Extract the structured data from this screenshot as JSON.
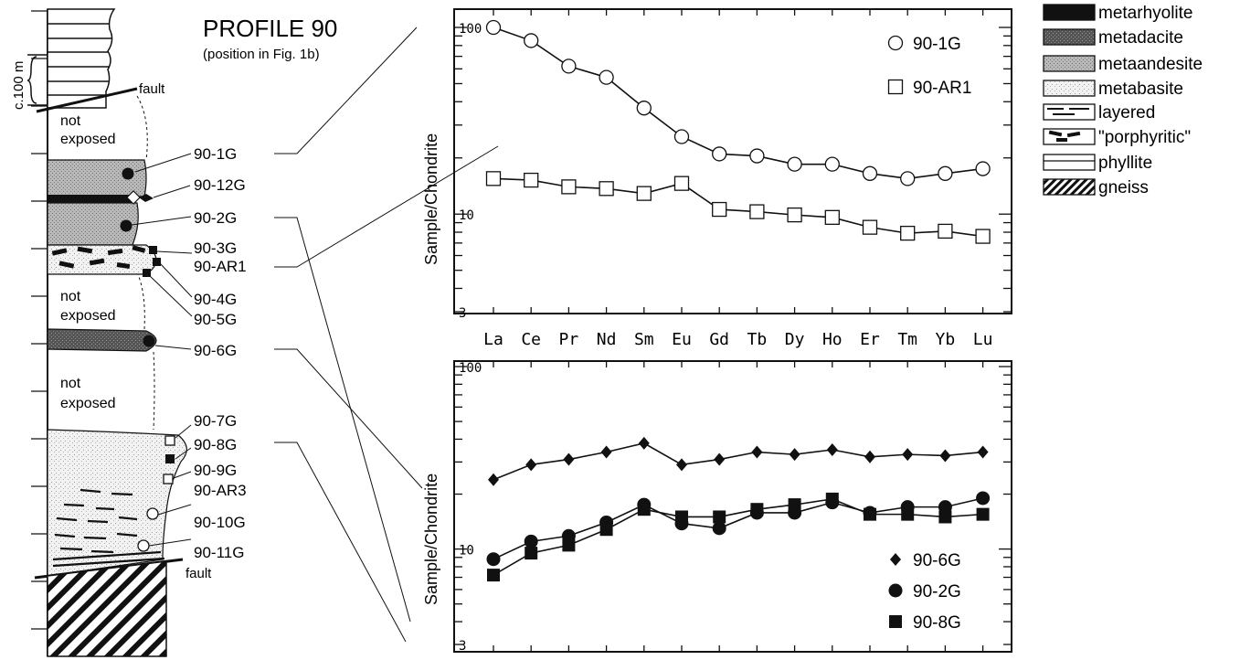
{
  "title": "PROFILE 90",
  "subtitle": "(position in Fig. 1b)",
  "scale_label": "c.100 m",
  "column_labels": {
    "fault_top": "fault",
    "fault_bottom": "fault",
    "not_exposed_1": [
      "not",
      "exposed"
    ],
    "not_exposed_2": [
      "not",
      "exposed"
    ],
    "not_exposed_3": [
      "not",
      "exposed"
    ]
  },
  "samples": [
    "90-1G",
    "90-12G",
    "90-2G",
    "90-3G",
    "90-AR1",
    "90-4G",
    "90-5G",
    "90-6G",
    "90-7G",
    "90-8G",
    "90-9G",
    "90-AR3",
    "90-10G",
    "90-11G"
  ],
  "legend": [
    {
      "label": "metarhyolite",
      "pattern": "solid-black"
    },
    {
      "label": "metadacite",
      "pattern": "dark-stipple"
    },
    {
      "label": "metaandesite",
      "pattern": "medium-stipple"
    },
    {
      "label": "metabasite",
      "pattern": "light-stipple"
    },
    {
      "label": "layered",
      "pattern": "dashes"
    },
    {
      "label": "\"porphyritic\"",
      "pattern": "thick-dashes"
    },
    {
      "label": "phyllite",
      "pattern": "horizontal-lines"
    },
    {
      "label": "gneiss",
      "pattern": "diagonal-hatch"
    }
  ],
  "colors": {
    "ink": "#111111",
    "stipple_dark": "#5a5a5a",
    "stipple_medium": "#b4b4b4",
    "stipple_light": "#ececec"
  },
  "chart_data": [
    {
      "type": "line",
      "ylabel": "Sample/Chondrite",
      "yscale": "log",
      "ylim": [
        3,
        100
      ],
      "yticks": [
        3,
        10,
        100
      ],
      "categories": [
        "La",
        "Ce",
        "Pr",
        "Nd",
        "Sm",
        "Eu",
        "Gd",
        "Tb",
        "Dy",
        "Ho",
        "Er",
        "Tm",
        "Yb",
        "Lu"
      ],
      "series": [
        {
          "name": "90-1G",
          "marker": "open-circle",
          "values": [
            100,
            85,
            62,
            54,
            37,
            26,
            21,
            20.5,
            18.5,
            18.5,
            16.5,
            15.5,
            16.5,
            17.5
          ]
        },
        {
          "name": "90-AR1",
          "marker": "open-square",
          "values": [
            15.5,
            15.2,
            14,
            13.7,
            12.9,
            14.6,
            10.6,
            10.3,
            9.9,
            9.6,
            8.5,
            7.9,
            8.1,
            7.6
          ]
        }
      ]
    },
    {
      "type": "line",
      "ylabel": "Sample/Chondrite",
      "yscale": "log",
      "ylim": [
        3,
        100
      ],
      "yticks": [
        3,
        10,
        100
      ],
      "categories": [
        "La",
        "Ce",
        "Pr",
        "Nd",
        "Sm",
        "Eu",
        "Gd",
        "Tb",
        "Dy",
        "Ho",
        "Er",
        "Tm",
        "Yb",
        "Lu"
      ],
      "series": [
        {
          "name": "90-6G",
          "marker": "filled-diamond",
          "values": [
            24,
            29,
            31,
            34,
            38,
            29,
            31,
            34,
            33,
            35,
            32,
            33,
            32.5,
            34
          ]
        },
        {
          "name": "90-2G",
          "marker": "filled-circle",
          "values": [
            8.8,
            11,
            11.8,
            14,
            17.5,
            13.8,
            13,
            15.8,
            15.8,
            18,
            15.8,
            17,
            17,
            19
          ]
        },
        {
          "name": "90-8G",
          "marker": "filled-square",
          "values": [
            7.2,
            9.5,
            10.5,
            12.8,
            16.5,
            15,
            15,
            16.5,
            17.5,
            18.8,
            15.5,
            15.5,
            15,
            15.5
          ]
        }
      ]
    }
  ]
}
